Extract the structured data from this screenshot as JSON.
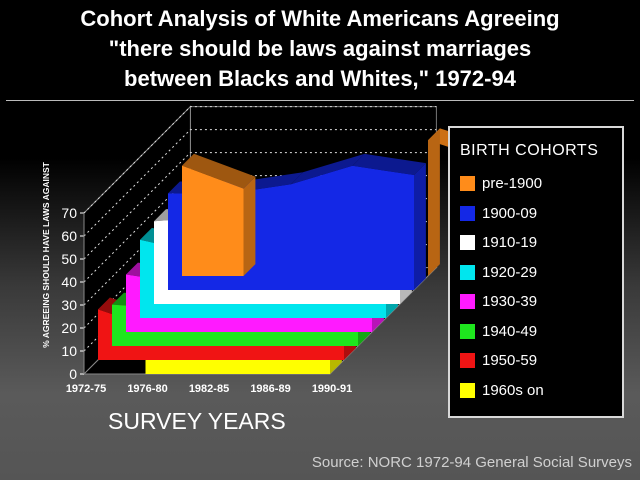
{
  "title_lines": [
    "Cohort Analysis of White Americans Agreeing",
    "\"there should be laws against marriages",
    "between Blacks and Whites,\" 1972-94"
  ],
  "source": "Source: NORC 1972-94 General Social Surveys",
  "colors": {
    "background": "#000000",
    "pre-1900": "#ff8c1a",
    "1900-09": "#1428e6",
    "1910-19": "#ffffff",
    "1920-29": "#00e6ee",
    "1930-39": "#ff1aff",
    "1940-49": "#1ee61e",
    "1950-59": "#f01414",
    "1960s on": "#ffff00"
  },
  "chart_data": {
    "type": "area",
    "style": "3d-ribbon",
    "xlabel": "SURVEY YEARS",
    "ylabel": "% AGREEING SHOULD HAVE LAWS AGAINST",
    "ylim": [
      0,
      70
    ],
    "yticks": [
      0,
      10,
      20,
      30,
      40,
      50,
      60,
      70
    ],
    "categories": [
      "1972-75",
      "1976-80",
      "1982-85",
      "1986-89",
      "1990-91"
    ],
    "legend_title": "BIRTH COHORTS",
    "legend_position": "right",
    "series": [
      {
        "name": "pre-1900",
        "values": [
          48,
          38,
          null,
          null,
          59
        ]
      },
      {
        "name": "1900-09",
        "values": [
          42,
          42,
          46,
          54,
          50
        ]
      },
      {
        "name": "1910-19",
        "values": [
          36,
          38,
          40,
          36,
          34
        ]
      },
      {
        "name": "1920-29",
        "values": [
          34,
          28,
          33,
          35,
          34
        ]
      },
      {
        "name": "1930-39",
        "values": [
          25,
          21,
          26,
          23,
          21
        ]
      },
      {
        "name": "1940-49",
        "values": [
          18,
          16,
          17,
          16,
          15
        ]
      },
      {
        "name": "1950-59",
        "values": [
          22,
          13,
          14,
          11,
          11
        ]
      },
      {
        "name": "1960s on",
        "values": [
          null,
          17,
          16,
          13,
          11
        ]
      }
    ]
  }
}
